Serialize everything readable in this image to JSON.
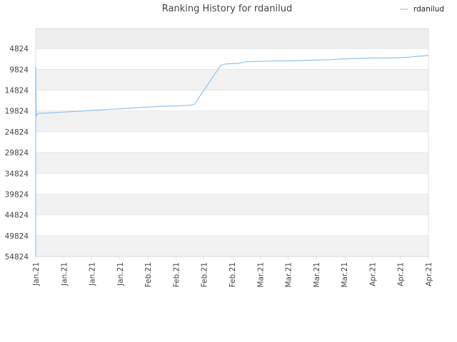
{
  "chart_data": {
    "type": "line",
    "title": "Ranking History for rdanilud",
    "legend": {
      "placement": "top-right"
    },
    "colors": {
      "line": "#90c3ee",
      "band_light": "#ffffff",
      "band_dark": "#f2f2f2",
      "top_band": "#eeeeee",
      "grid": "#dddddd",
      "axis": "#cccccc"
    },
    "y_axis": {
      "reversed": true,
      "ylim": [
        54824,
        0
      ],
      "ticks": [
        4824,
        9824,
        14824,
        19824,
        24824,
        29824,
        34824,
        39824,
        44824,
        49824,
        54824
      ]
    },
    "x_axis": {
      "xlim": [
        0,
        14
      ],
      "tick_labels": [
        "Jan.21",
        "Jan.21",
        "Jan.21",
        "Jan.21",
        "Feb.21",
        "Feb.21",
        "Feb.21",
        "Feb.21",
        "Mar.21",
        "Mar.21",
        "Mar.21",
        "Mar.21",
        "Apr.21",
        "Apr.21",
        "Apr.21"
      ]
    },
    "series": [
      {
        "name": "rdanilud",
        "points": [
          [
            0,
            9200
          ],
          [
            0.02,
            21000
          ],
          [
            0.1,
            20400
          ],
          [
            0.5,
            20300
          ],
          [
            1.0,
            20100
          ],
          [
            1.5,
            19900
          ],
          [
            2.0,
            19700
          ],
          [
            2.5,
            19500
          ],
          [
            3.0,
            19300
          ],
          [
            3.5,
            19100
          ],
          [
            4.0,
            18900
          ],
          [
            4.5,
            18700
          ],
          [
            5.0,
            18600
          ],
          [
            5.4,
            18500
          ],
          [
            5.65,
            18300
          ],
          [
            6.6,
            8800
          ],
          [
            6.8,
            8500
          ],
          [
            7.2,
            8400
          ],
          [
            7.5,
            8000
          ],
          [
            8.0,
            7900
          ],
          [
            8.5,
            7800
          ],
          [
            9.0,
            7800
          ],
          [
            9.5,
            7700
          ],
          [
            10.0,
            7600
          ],
          [
            10.5,
            7500
          ],
          [
            11.0,
            7300
          ],
          [
            11.5,
            7200
          ],
          [
            12.0,
            7100
          ],
          [
            12.5,
            7100
          ],
          [
            13.0,
            7000
          ],
          [
            13.3,
            6900
          ],
          [
            13.6,
            6700
          ],
          [
            14.0,
            6500
          ]
        ]
      }
    ]
  }
}
